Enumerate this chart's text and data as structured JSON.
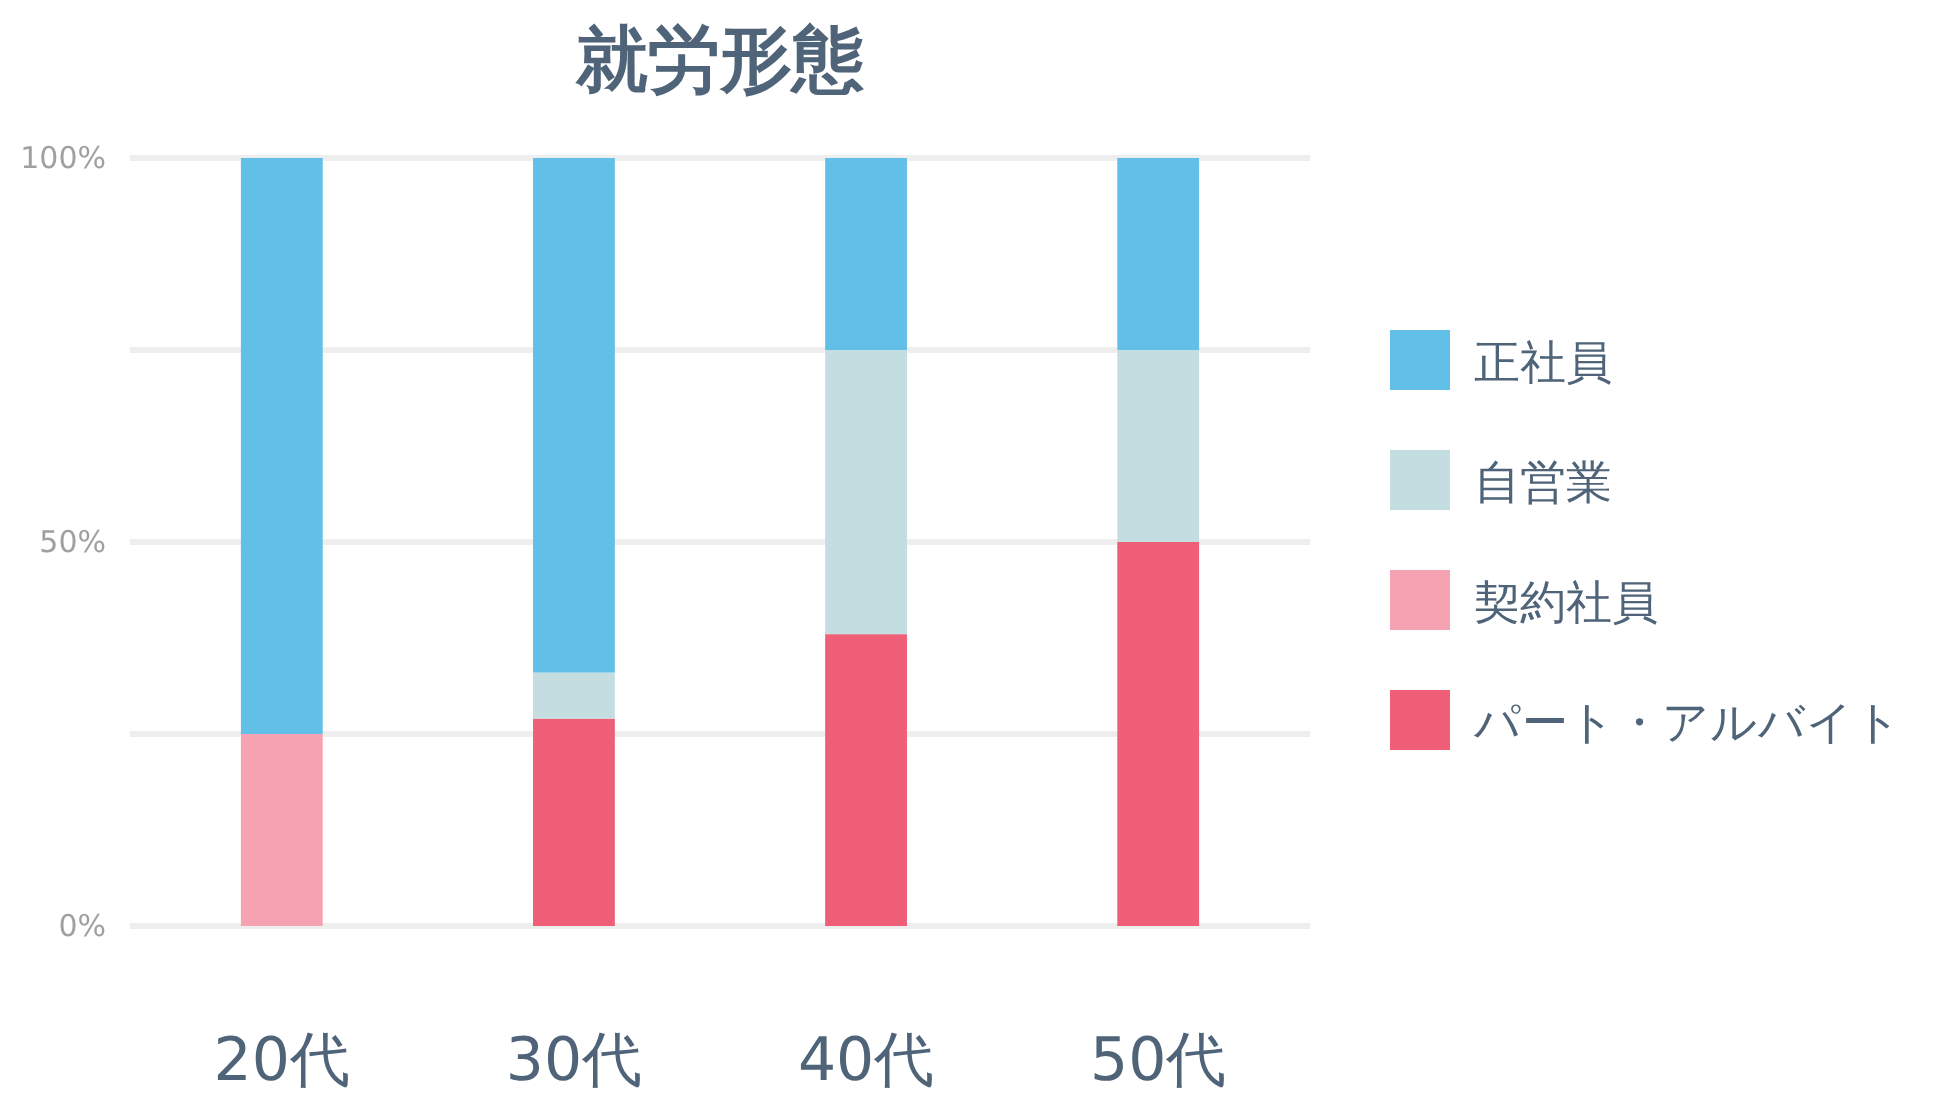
{
  "chart_data": {
    "type": "bar",
    "title": "就労形態",
    "stacked": true,
    "categories": [
      "20代",
      "30代",
      "40代",
      "50代"
    ],
    "series": [
      {
        "name": "パート・アルバイト",
        "color": "#ef5f78",
        "values": [
          0,
          27,
          38,
          50
        ]
      },
      {
        "name": "契約社員",
        "color": "#f5a3b2",
        "values": [
          25,
          0,
          0,
          0
        ]
      },
      {
        "name": "自営業",
        "color": "#c4dde0",
        "values": [
          0,
          6,
          37,
          25
        ]
      },
      {
        "name": "正社員",
        "color": "#62bfe8",
        "values": [
          75,
          67,
          25,
          25
        ]
      }
    ],
    "ylim": [
      0,
      100
    ],
    "yticks": [
      {
        "value": 0,
        "label": "0%"
      },
      {
        "value": 25,
        "label": null
      },
      {
        "value": 50,
        "label": "50%"
      },
      {
        "value": 75,
        "label": null
      },
      {
        "value": 100,
        "label": "100%"
      }
    ],
    "grid": "y",
    "legend": "right"
  }
}
